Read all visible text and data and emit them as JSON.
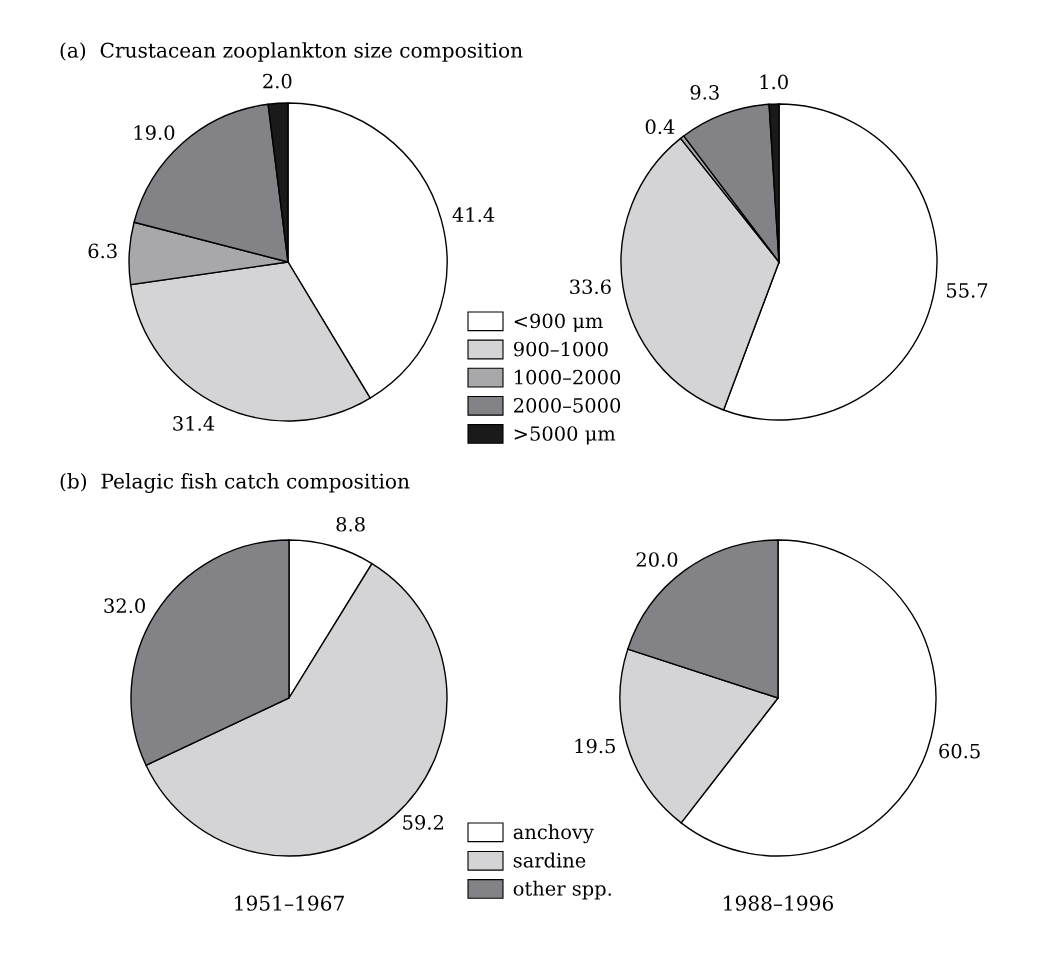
{
  "chart_data": [
    {
      "type": "pie",
      "title": "(a)  Crustacean zooplankton size composition",
      "categories": [
        "<900 μm",
        "900–1000",
        "1000–2000",
        "2000–5000",
        ">5000 μm"
      ],
      "values": [
        41.4,
        31.4,
        6.3,
        19.0,
        2.0
      ],
      "value_labels": [
        "41.4",
        "31.4",
        "6.3",
        "19.0",
        "2.0"
      ],
      "colors": [
        "#ffffff",
        "#d4d4d6",
        "#a8a8ab",
        "#838387",
        "#1a1a1a"
      ],
      "legend": "bottom right"
    },
    {
      "type": "pie",
      "categories": [
        null,
        null,
        null,
        null,
        null
      ],
      "values": [
        55.7,
        33.6,
        0.4,
        9.3,
        1.0
      ],
      "value_labels": [
        "55.7",
        "33.6",
        "0.4",
        "9.3",
        "1.0"
      ],
      "colors": [
        "#ffffff",
        "#d4d4d6",
        "#a8a8ab",
        "#838387",
        "#1a1a1a"
      ]
    },
    {
      "type": "pie",
      "title": "(b)  Pelagic fish catch composition",
      "xlabel": "1951–1967",
      "categories": [
        "anchovy",
        "sardine",
        "other spp."
      ],
      "values": [
        8.8,
        59.2,
        32.0
      ],
      "value_labels": [
        "8.8",
        "59.2",
        "32.0"
      ],
      "colors": [
        "#ffffff",
        "#d4d4d6",
        "#838387"
      ],
      "legend": "bottom right"
    },
    {
      "type": "pie",
      "xlabel": "1988–1996",
      "categories": [
        null,
        null,
        null
      ],
      "values": [
        60.5,
        19.5,
        20.0
      ],
      "value_labels": [
        "60.5",
        "19.5",
        "20.0"
      ],
      "colors": [
        "#ffffff",
        "#d4d4d6",
        "#838387"
      ]
    }
  ]
}
